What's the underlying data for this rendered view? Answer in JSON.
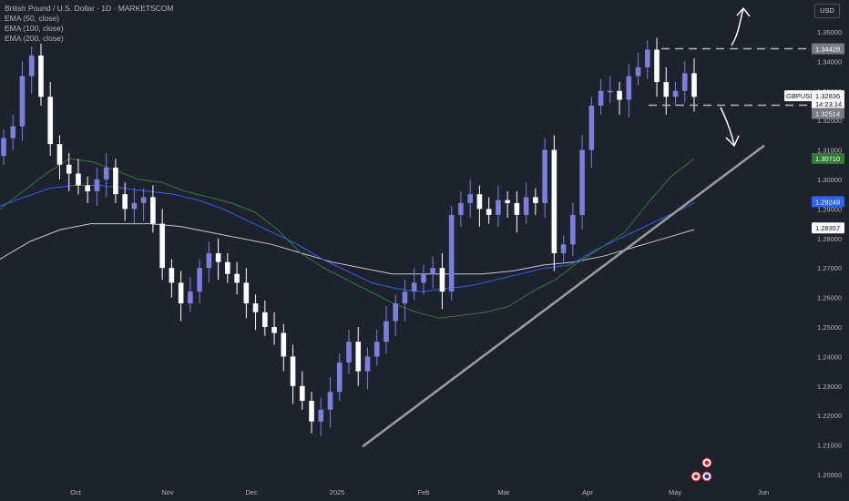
{
  "header": {
    "title": "British Pound / U.S. Dollar · 1D · MARKETSCOM",
    "indicators": [
      "EMA (50, close)",
      "EMA (100, close)",
      "EMA (200, close)"
    ],
    "currency": "USD"
  },
  "price_tags": {
    "symbol": "GBPUSD",
    "last": "1.32836",
    "countdown": "14:23:14",
    "resistance": "1.34428",
    "support": "1.32514",
    "ema50": "1.30710",
    "ema100": "1.29249",
    "ema200": "1.28357"
  },
  "colors": {
    "background": "#1e222d",
    "candle": "#7b7fdd",
    "candle_down": "#ffffff",
    "ema50": "#2e7d32",
    "ema100": "#2962ff",
    "ema200": "#c7c9d1",
    "trendline": "#9e9e9e"
  },
  "chart_data": {
    "type": "line",
    "title": "British Pound / U.S. Dollar · 1D · MARKETSCOM",
    "xlabel": "",
    "ylabel": "",
    "ylim": [
      1.195,
      1.36
    ],
    "y_ticks": [
      "1.35000",
      "1.34000",
      "1.33000",
      "1.32000",
      "1.31000",
      "1.30000",
      "1.29000",
      "1.28000",
      "1.27000",
      "1.26000",
      "1.25000",
      "1.24000",
      "1.23000",
      "1.22000",
      "1.21000",
      "1.20000"
    ],
    "x_ticks": [
      "Oct",
      "Nov",
      "Dec",
      "2025",
      "Feb",
      "Mar",
      "Apr",
      "May",
      "Jun"
    ],
    "series": [
      {
        "name": "GBPUSD",
        "values_approx_close": [
          1.314,
          1.318,
          1.335,
          1.342,
          1.328,
          1.312,
          1.305,
          1.302,
          1.298,
          1.296,
          1.3,
          1.304,
          1.295,
          1.29,
          1.292,
          1.294,
          1.285,
          1.27,
          1.265,
          1.258,
          1.262,
          1.27,
          1.275,
          1.272,
          1.268,
          1.265,
          1.258,
          1.255,
          1.25,
          1.248,
          1.24,
          1.23,
          1.225,
          1.218,
          1.222,
          1.228,
          1.238,
          1.245,
          1.235,
          1.24,
          1.245,
          1.252,
          1.258,
          1.262,
          1.265,
          1.268,
          1.27,
          1.262,
          1.288,
          1.292,
          1.295,
          1.29,
          1.288,
          1.293,
          1.292,
          1.288,
          1.294,
          1.292,
          1.31,
          1.275,
          1.278,
          1.288,
          1.31,
          1.325,
          1.33,
          1.33,
          1.327,
          1.335,
          1.338,
          1.344,
          1.333,
          1.328,
          1.33,
          1.336,
          1.328
        ]
      },
      {
        "name": "EMA (50, close)",
        "values": [
          1.29,
          1.296,
          1.302,
          1.307,
          1.306,
          1.303,
          1.3,
          1.299,
          1.296,
          1.294,
          1.292,
          1.289,
          1.283,
          1.275,
          1.27,
          1.266,
          1.262,
          1.258,
          1.255,
          1.253,
          1.254,
          1.255,
          1.257,
          1.262,
          1.266,
          1.272,
          1.277,
          1.282,
          1.292,
          1.301,
          1.307
        ]
      },
      {
        "name": "EMA (100, close)",
        "values": [
          1.291,
          1.294,
          1.297,
          1.298,
          1.298,
          1.297,
          1.296,
          1.295,
          1.293,
          1.29,
          1.286,
          1.282,
          1.278,
          1.273,
          1.269,
          1.265,
          1.263,
          1.262,
          1.263,
          1.264,
          1.266,
          1.268,
          1.27,
          1.271,
          1.276,
          1.28,
          1.284,
          1.288,
          1.292
        ]
      },
      {
        "name": "EMA (200, close)",
        "values": [
          1.273,
          1.279,
          1.283,
          1.285,
          1.285,
          1.285,
          1.284,
          1.282,
          1.28,
          1.278,
          1.275,
          1.272,
          1.27,
          1.268,
          1.268,
          1.268,
          1.268,
          1.269,
          1.271,
          1.272,
          1.274,
          1.277,
          1.28,
          1.283
        ]
      }
    ],
    "annotations": {
      "resistance_level": 1.34428,
      "support_level": 1.32514,
      "trendline": [
        [
          1.2095
        ],
        [
          1.3115
        ]
      ],
      "arrows": [
        "up",
        "down"
      ]
    },
    "grid": false,
    "legend": "top-left"
  }
}
